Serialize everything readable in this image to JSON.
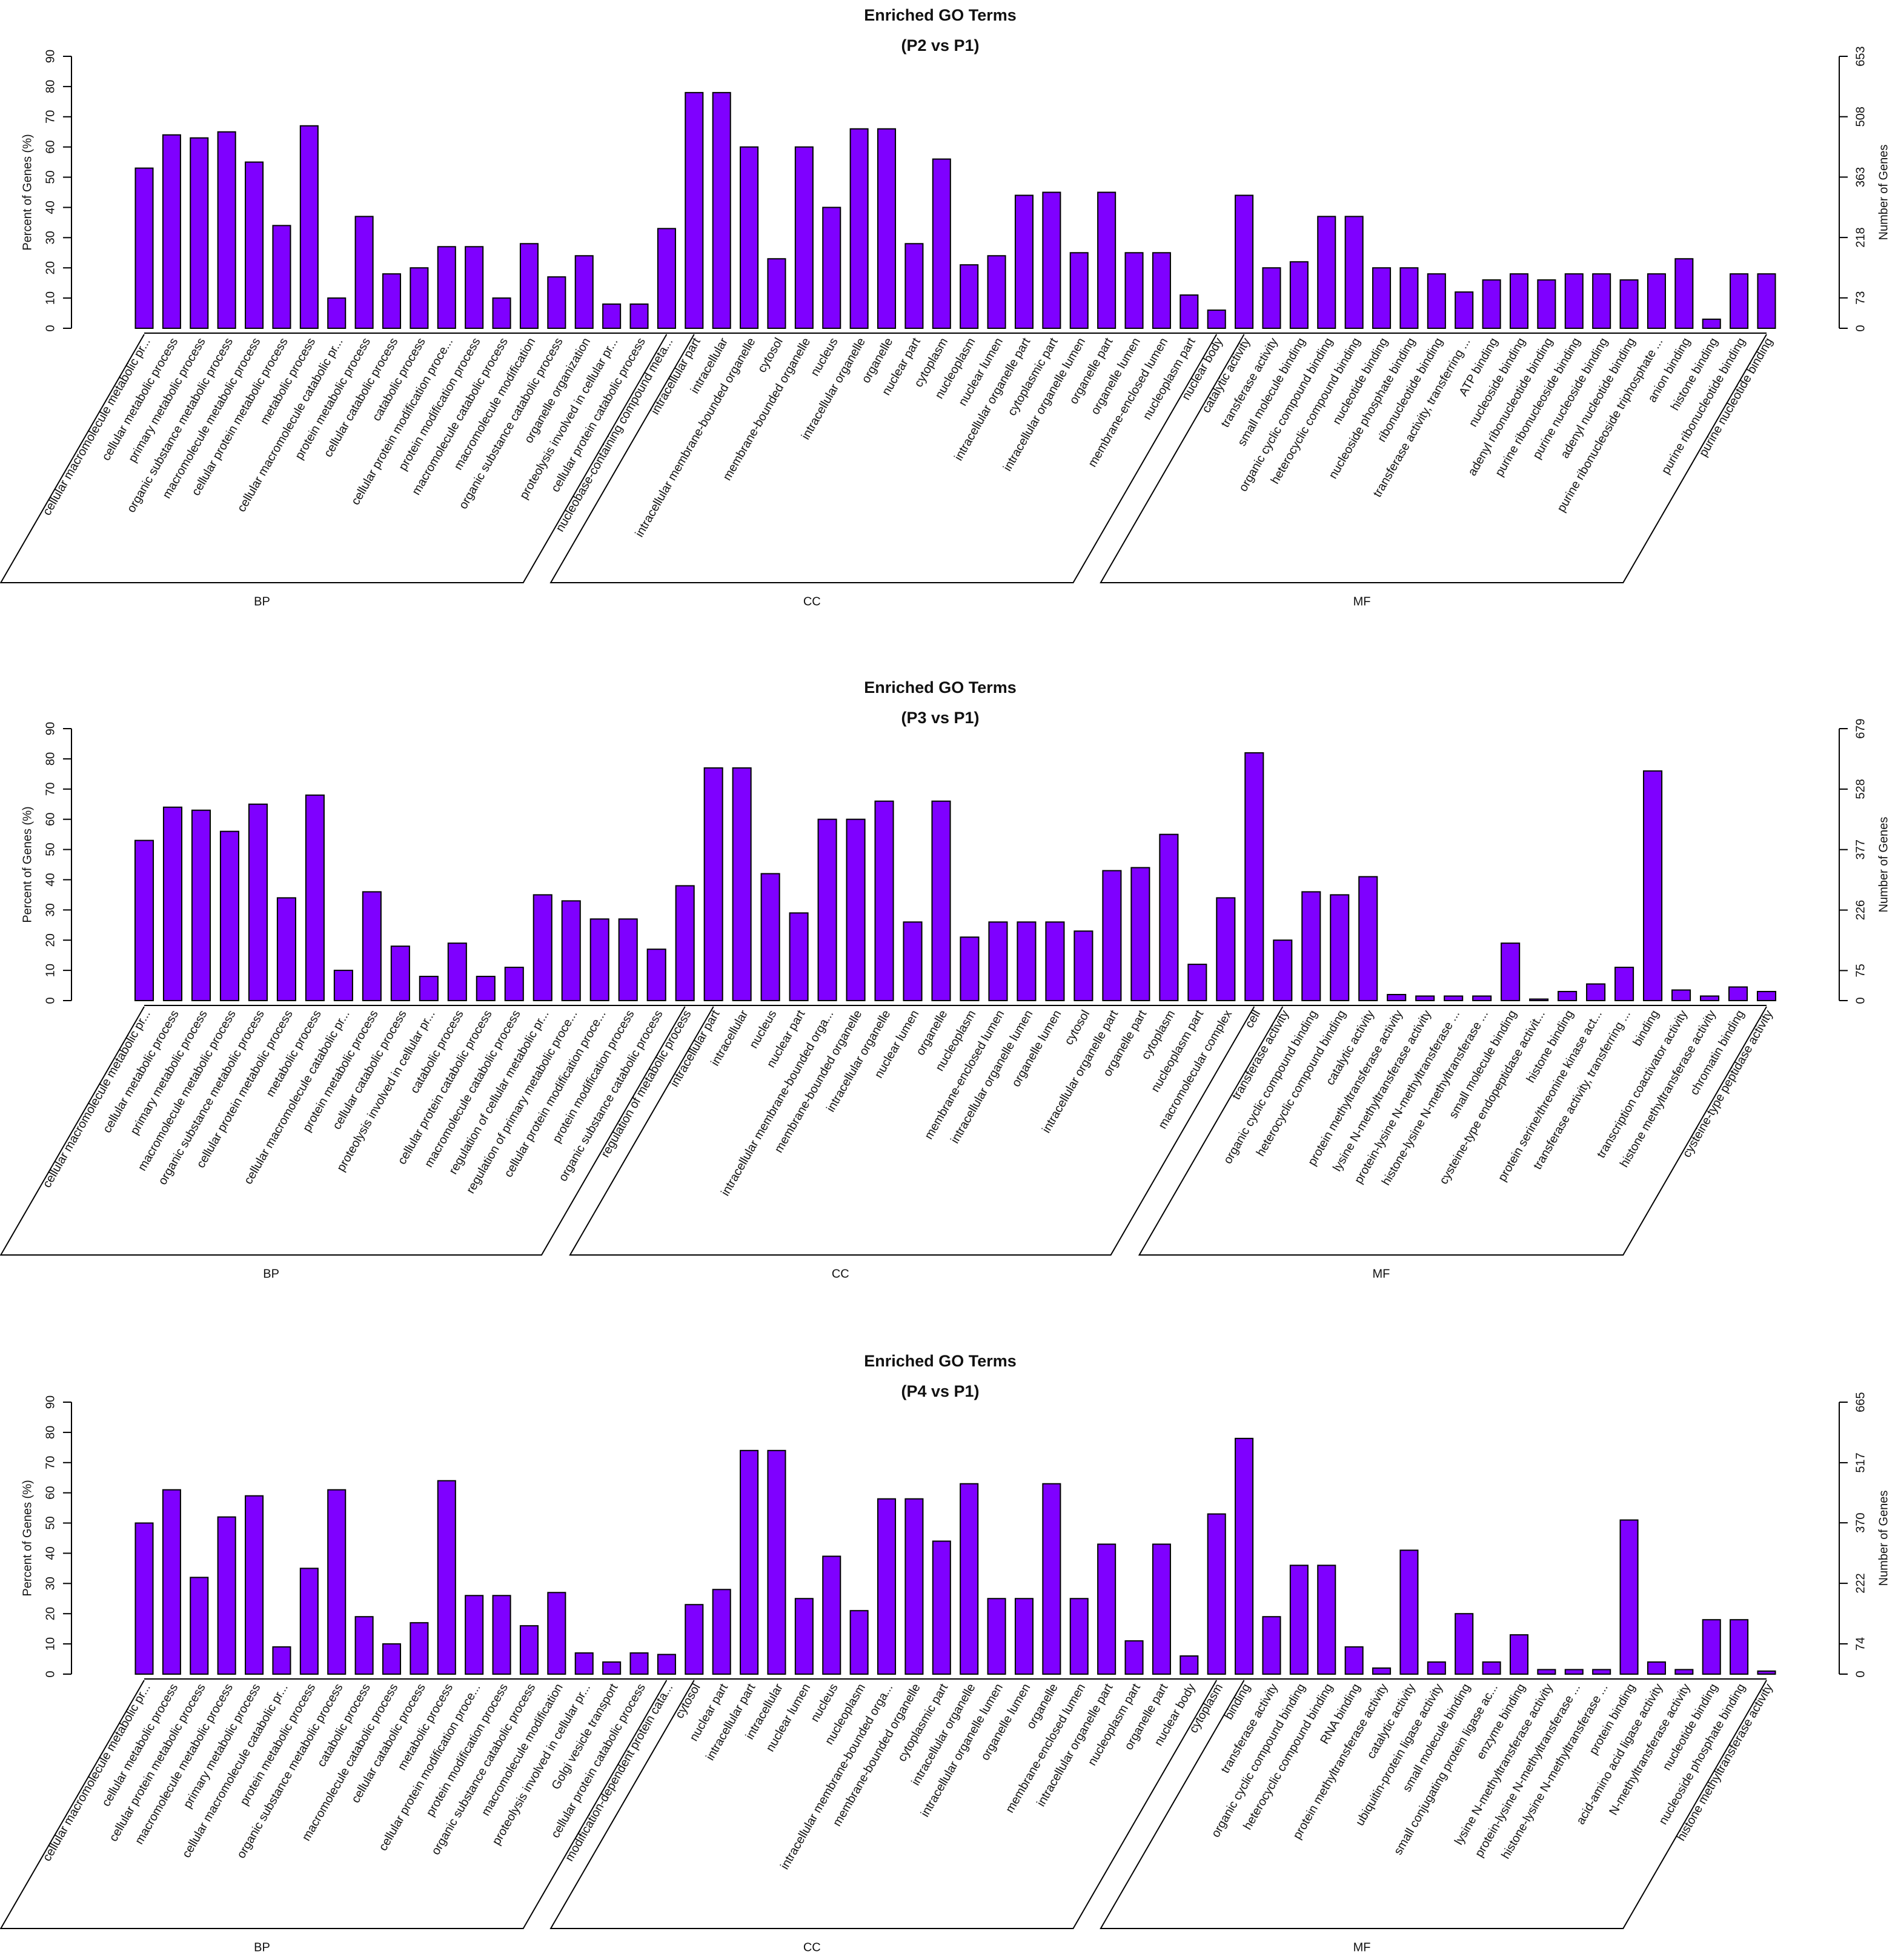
{
  "chart_data": [
    {
      "type": "bar",
      "title": "Enriched GO Terms",
      "subtitle": "(P2 vs P1)",
      "y_label": "Percent of Genes (%)",
      "y2_label": "Number of Genes",
      "ylim": [
        0,
        90
      ],
      "yticks": [
        0,
        10,
        20,
        30,
        40,
        50,
        60,
        70,
        80,
        90
      ],
      "y2lim": [
        0,
        653
      ],
      "y2ticks": [
        0,
        73,
        218,
        363,
        508,
        653
      ],
      "color": "#7f00ff",
      "groups": [
        {
          "label": "BP",
          "categories": [
            "cellular macromolecule metabolic pr...",
            "cellular metabolic process",
            "primary metabolic process",
            "organic substance metabolic process",
            "macromolecule metabolic process",
            "cellular protein metabolic process",
            "metabolic process",
            "cellular macromolecule catabolic pr...",
            "protein metabolic process",
            "cellular catabolic process",
            "catabolic process",
            "cellular protein modification proce...",
            "protein modification process",
            "macromolecule catabolic process",
            "macromolecule modification",
            "organic substance catabolic process",
            "organelle organization",
            "proteolysis involved in cellular pr...",
            "cellular protein catabolic process",
            "nucleobase-containing compound meta..."
          ],
          "values": [
            53,
            64,
            63,
            65,
            55,
            34,
            67,
            10,
            37,
            18,
            20,
            27,
            27,
            10,
            28,
            17,
            24,
            8,
            8,
            33
          ]
        },
        {
          "label": "CC",
          "categories": [
            "intracellular part",
            "intracellular",
            "intracellular membrane-bounded organelle",
            "cytosol",
            "membrane-bounded organelle",
            "nucleus",
            "intracellular organelle",
            "organelle",
            "nuclear part",
            "cytoplasm",
            "nucleoplasm",
            "nuclear lumen",
            "intracellular organelle part",
            "cytoplasmic part",
            "intracellular organelle lumen",
            "organelle part",
            "organelle lumen",
            "membrane-enclosed lumen",
            "nucleoplasm part",
            "nuclear body"
          ],
          "values": [
            78,
            78,
            60,
            23,
            60,
            40,
            66,
            66,
            28,
            56,
            21,
            24,
            44,
            45,
            25,
            45,
            25,
            25,
            11,
            6
          ]
        },
        {
          "label": "MF",
          "categories": [
            "catalytic activity",
            "transferase activity",
            "small molecule binding",
            "organic cyclic compound binding",
            "heterocyclic compound binding",
            "nucleotide binding",
            "nucleoside phosphate binding",
            "ribonucleotide binding",
            "transferase activity, transferring ...",
            "ATP binding",
            "nucleoside binding",
            "adenyl ribonucleotide binding",
            "purine ribonucleoside binding",
            "purine nucleoside binding",
            "adenyl nucleotide binding",
            "purine ribonucleoside triphosphate ...",
            "anion binding",
            "histone binding",
            "purine ribonucleotide binding",
            "purine nucleotide binding"
          ],
          "values": [
            44,
            20,
            22,
            37,
            37,
            20,
            20,
            18,
            12,
            16,
            18,
            16,
            18,
            18,
            16,
            18,
            23,
            3,
            18,
            18
          ]
        }
      ]
    },
    {
      "type": "bar",
      "title": "Enriched GO Terms",
      "subtitle": "(P3 vs P1)",
      "y_label": "Percent of Genes (%)",
      "y2_label": "Number of Genes",
      "ylim": [
        0,
        90
      ],
      "yticks": [
        0,
        10,
        20,
        30,
        40,
        50,
        60,
        70,
        80,
        90
      ],
      "y2lim": [
        0,
        679
      ],
      "y2ticks": [
        0,
        75,
        226,
        377,
        528,
        679
      ],
      "color": "#7f00ff",
      "groups": [
        {
          "label": "BP",
          "categories": [
            "cellular macromolecule metabolic pr...",
            "cellular metabolic process",
            "primary metabolic process",
            "macromolecule metabolic process",
            "organic substance metabolic process",
            "cellular protein metabolic process",
            "metabolic process",
            "cellular macromolecule catabolic pr...",
            "protein metabolic process",
            "cellular catabolic process",
            "proteolysis involved in cellular pr...",
            "catabolic process",
            "cellular protein catabolic process",
            "macromolecule catabolic process",
            "regulation of cellular metabolic pr...",
            "regulation of primary metabolic proce...",
            "cellular protein modification proce...",
            "protein modification process",
            "organic substance catabolic process",
            "regulation of metabolic process"
          ],
          "values": [
            53,
            64,
            63,
            56,
            65,
            34,
            68,
            10,
            36,
            18,
            8,
            19,
            8,
            11,
            35,
            33,
            27,
            27,
            17,
            38
          ]
        },
        {
          "label": "CC",
          "categories": [
            "intracellular part",
            "intracellular",
            "nucleus",
            "nuclear part",
            "intracellular membrane-bounded orga...",
            "membrane-bounded organelle",
            "intracellular organelle",
            "nuclear lumen",
            "organelle",
            "nucleoplasm",
            "membrane-enclosed lumen",
            "intracellular organelle lumen",
            "organelle lumen",
            "cytosol",
            "intracellular organelle part",
            "organelle part",
            "cytoplasm",
            "nucleoplasm part",
            "macromolecular complex",
            "cell"
          ],
          "values": [
            77,
            77,
            42,
            29,
            60,
            60,
            66,
            26,
            66,
            21,
            26,
            26,
            26,
            23,
            43,
            44,
            55,
            12,
            34,
            82
          ]
        },
        {
          "label": "MF",
          "categories": [
            "transferase activity",
            "organic cyclic compound binding",
            "heterocyclic compound binding",
            "catalytic activity",
            "protein methyltransferase activity",
            "lysine N-methyltransferase activity",
            "protein-lysine N-methyltransferase ...",
            "histone-lysine N-methyltransferase ...",
            "small molecule binding",
            "cysteine-type endopeptidase activit...",
            "histone binding",
            "protein serine/threonine kinase act...",
            "transferase activity, transferring ...",
            "binding",
            "transcription coactivator activity",
            "histone methyltransferase activity",
            "chromatin binding",
            "cysteine-type peptidase activity"
          ],
          "values": [
            20,
            36,
            35,
            41,
            2,
            1.5,
            1.5,
            1.5,
            19,
            0.5,
            3,
            5.5,
            11,
            76,
            3.5,
            1.5,
            4.5,
            3
          ]
        }
      ]
    },
    {
      "type": "bar",
      "title": "Enriched GO Terms",
      "subtitle": "(P4 vs P1)",
      "y_label": "Percent of Genes (%)",
      "y2_label": "Number of Genes",
      "ylim": [
        0,
        90
      ],
      "yticks": [
        0,
        10,
        20,
        30,
        40,
        50,
        60,
        70,
        80,
        90
      ],
      "y2lim": [
        0,
        665
      ],
      "y2ticks": [
        0,
        74,
        222,
        370,
        517,
        665
      ],
      "color": "#7f00ff",
      "groups": [
        {
          "label": "BP",
          "categories": [
            "cellular macromolecule metabolic pr...",
            "cellular metabolic process",
            "cellular protein metabolic process",
            "macromolecule metabolic process",
            "primary metabolic process",
            "cellular macromolecule catabolic pr...",
            "protein metabolic process",
            "organic substance metabolic process",
            "catabolic process",
            "macromolecule catabolic process",
            "cellular catabolic process",
            "metabolic process",
            "cellular protein modification proce...",
            "protein modification process",
            "organic substance catabolic process",
            "macromolecule modification",
            "proteolysis involved in cellular pr...",
            "Golgi vesicle transport",
            "cellular protein catabolic process",
            "modification-dependent protein cata..."
          ],
          "values": [
            50,
            61,
            32,
            52,
            59,
            9,
            35,
            61,
            19,
            10,
            17,
            64,
            26,
            26,
            16,
            27,
            7,
            4,
            7,
            6.5
          ]
        },
        {
          "label": "CC",
          "categories": [
            "cytosol",
            "nuclear part",
            "intracellular part",
            "intracellular",
            "nuclear lumen",
            "nucleus",
            "nucleoplasm",
            "intracellular membrane-bounded orga...",
            "membrane-bounded organelle",
            "cytoplasmic part",
            "intracellular organelle",
            "intracellular organelle lumen",
            "organelle lumen",
            "organelle",
            "membrane-enclosed lumen",
            "intracellular organelle part",
            "nucleoplasm part",
            "organelle part",
            "nuclear body",
            "cytoplasm"
          ],
          "values": [
            23,
            28,
            74,
            74,
            25,
            39,
            21,
            58,
            58,
            44,
            63,
            25,
            25,
            63,
            25,
            43,
            11,
            43,
            6,
            53
          ]
        },
        {
          "label": "MF",
          "categories": [
            "binding",
            "transferase activity",
            "organic cyclic compound binding",
            "heterocyclic compound binding",
            "RNA binding",
            "protein methyltransferase activity",
            "catalytic activity",
            "ubiquitin-protein ligase activity",
            "small molecule binding",
            "small conjugating protein ligase ac...",
            "enzyme binding",
            "lysine N-methyltransferase activity",
            "protein-lysine N-methyltransferase ...",
            "histone-lysine N-methyltransferase ...",
            "protein binding",
            "acid-amino acid ligase activity",
            "N-methyltransferase activity",
            "nucleotide binding",
            "nucleoside phosphate binding",
            "histone methyltransferase activity"
          ],
          "values": [
            78,
            19,
            36,
            36,
            9,
            2,
            41,
            4,
            20,
            4,
            13,
            1.5,
            1.5,
            1.5,
            51,
            4,
            1.5,
            18,
            18,
            1
          ]
        }
      ]
    }
  ]
}
